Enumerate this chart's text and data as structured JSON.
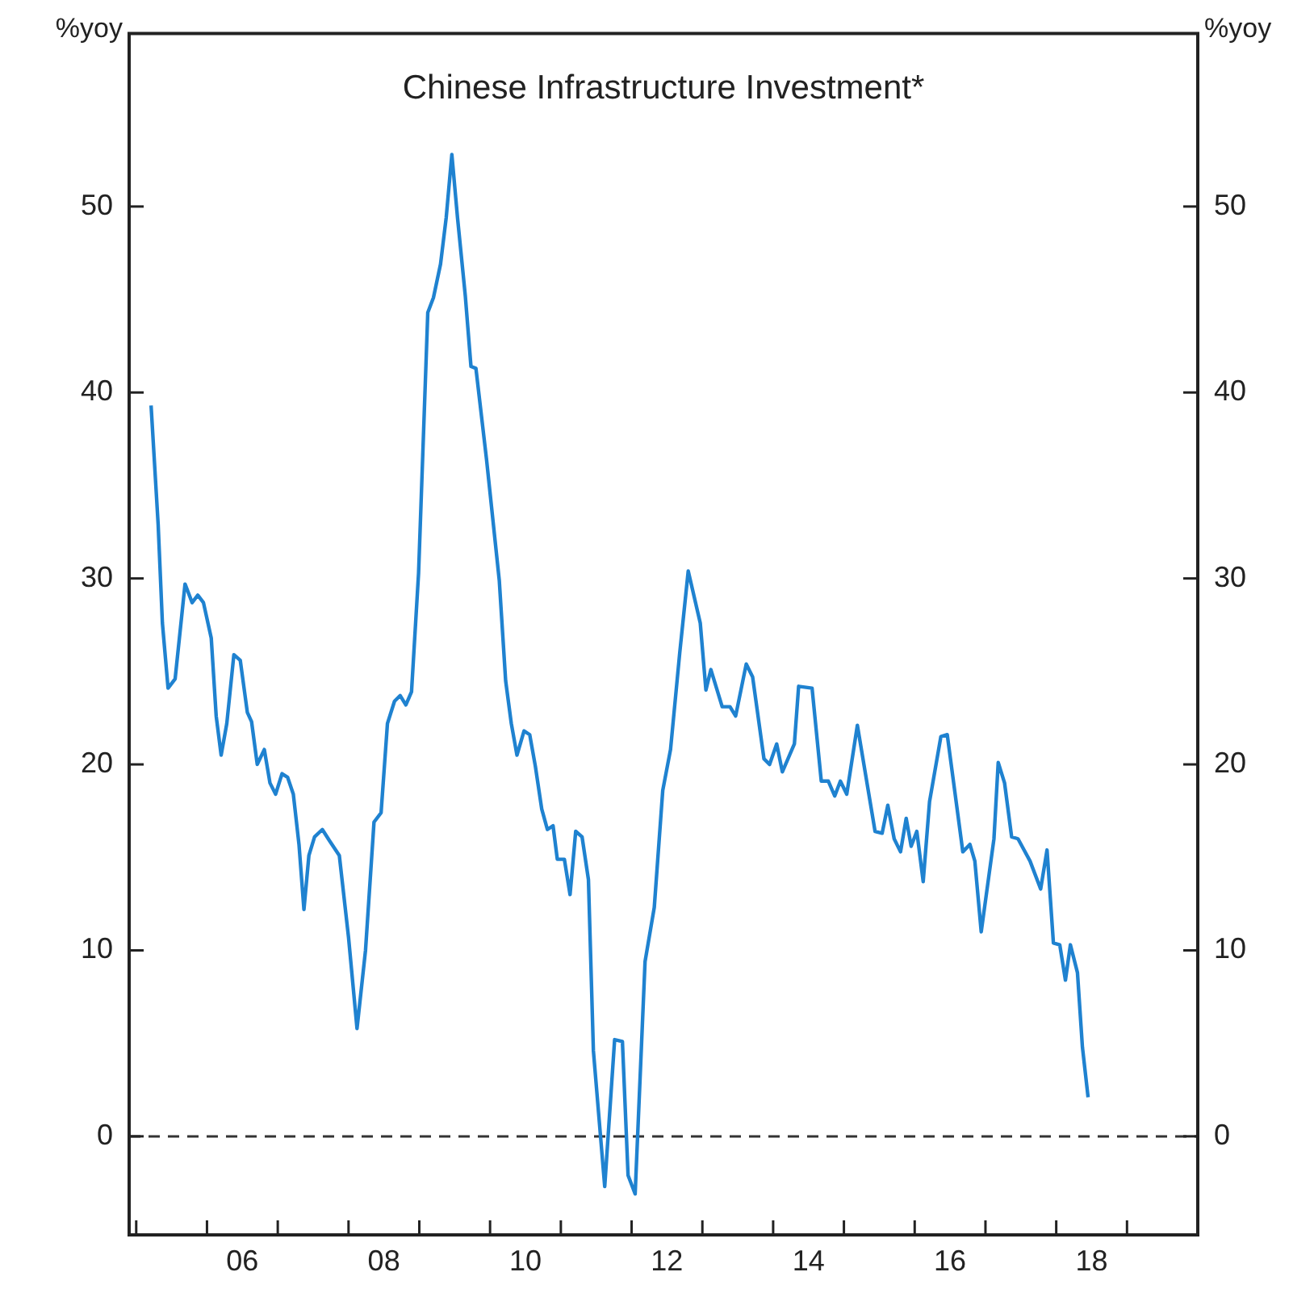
{
  "chart_data": {
    "type": "line",
    "title": "Chinese Infrastructure Investment*",
    "ylabel": "%yoy",
    "y2label": "%yoy",
    "x": [
      2004.71,
      2004.81,
      2004.87,
      2004.95,
      2005.05,
      2005.19,
      2005.29,
      2005.37,
      2005.45,
      2005.56,
      2005.63,
      2005.7,
      2005.78,
      2005.88,
      2005.97,
      2006.07,
      2006.13,
      2006.21,
      2006.31,
      2006.39,
      2006.47,
      2006.56,
      2006.64,
      2006.72,
      2006.8,
      2006.87,
      2006.94,
      2007.02,
      2007.13,
      2007.23,
      2007.37,
      2007.5,
      2007.62,
      2007.74,
      2007.86,
      2007.96,
      2008.05,
      2008.15,
      2008.23,
      2008.31,
      2008.39,
      2008.49,
      2008.62,
      2008.7,
      2008.8,
      2008.88,
      2008.96,
      2009.04,
      2009.15,
      2009.23,
      2009.3,
      2009.45,
      2009.63,
      2009.72,
      2009.8,
      2009.88,
      2009.98,
      2010.06,
      2010.14,
      2010.23,
      2010.31,
      2010.39,
      2010.45,
      2010.55,
      2010.63,
      2010.71,
      2010.8,
      2010.89,
      2010.96,
      2011.12,
      2011.26,
      2011.37,
      2011.45,
      2011.55,
      2011.69,
      2011.82,
      2011.94,
      2012.05,
      2012.18,
      2012.3,
      2012.47,
      2012.55,
      2012.62,
      2012.78,
      2012.89,
      2012.97,
      2013.12,
      2013.21,
      2013.37,
      2013.45,
      2013.55,
      2013.63,
      2013.8,
      2013.86,
      2014.05,
      2014.18,
      2014.28,
      2014.37,
      2014.45,
      2014.54,
      2014.69,
      2014.94,
      2015.04,
      2015.12,
      2015.21,
      2015.3,
      2015.38,
      2015.45,
      2015.53,
      2015.62,
      2015.71,
      2015.87,
      2015.96,
      2016.18,
      2016.28,
      2016.35,
      2016.44,
      2016.62,
      2016.68,
      2016.77,
      2016.87,
      2016.96,
      2017.13,
      2017.28,
      2017.37,
      2017.46,
      2017.55,
      2017.63,
      2017.7,
      2017.8,
      2017.87,
      2017.95
    ],
    "series": [
      {
        "color": "#1f82d0",
        "values": [
          39.3,
          32.9,
          27.6,
          24.1,
          24.6,
          29.7,
          28.7,
          29.1,
          28.7,
          26.8,
          22.6,
          20.5,
          22.2,
          25.9,
          25.6,
          22.8,
          22.3,
          20.0,
          20.8,
          19.0,
          18.4,
          19.5,
          19.3,
          18.4,
          15.7,
          12.2,
          15.1,
          16.1,
          16.5,
          15.9,
          15.1,
          10.7,
          5.8,
          10.0,
          16.9,
          17.4,
          22.2,
          23.4,
          23.7,
          23.2,
          23.9,
          30.3,
          44.3,
          45.1,
          46.9,
          49.4,
          52.8,
          49.4,
          45.2,
          41.4,
          41.3,
          36.4,
          29.9,
          24.5,
          22.2,
          20.5,
          21.8,
          21.6,
          19.9,
          17.6,
          16.5,
          16.7,
          14.9,
          14.9,
          13.0,
          16.4,
          16.1,
          13.8,
          4.6,
          -2.7,
          5.2,
          5.1,
          -2.1,
          -3.1,
          9.4,
          12.3,
          18.6,
          20.8,
          26.0,
          30.4,
          27.6,
          24.0,
          25.1,
          23.1,
          23.1,
          22.6,
          25.4,
          24.7,
          20.3,
          20.0,
          21.1,
          19.6,
          21.1,
          24.2,
          24.1,
          19.1,
          19.1,
          18.3,
          19.1,
          18.4,
          22.1,
          16.4,
          16.3,
          17.8,
          16.0,
          15.3,
          17.1,
          15.6,
          16.4,
          13.7,
          18.0,
          21.5,
          21.6,
          15.3,
          15.7,
          14.8,
          11.0,
          16.0,
          20.1,
          19.0,
          16.1,
          16.0,
          14.8,
          13.3,
          15.4,
          10.4,
          10.3,
          8.4,
          10.3,
          8.8,
          4.8,
          2.1
        ]
      }
    ],
    "xlim": [
      2004.4,
      2019.5
    ],
    "xticks": [
      {
        "value": 2004.5,
        "label": null
      },
      {
        "value": 2005.5,
        "label": null
      },
      {
        "value": 2006,
        "label": "06"
      },
      {
        "value": 2006.5,
        "label": null
      },
      {
        "value": 2007.5,
        "label": null
      },
      {
        "value": 2008,
        "label": "08"
      },
      {
        "value": 2008.5,
        "label": null
      },
      {
        "value": 2009.5,
        "label": null
      },
      {
        "value": 2010,
        "label": "10"
      },
      {
        "value": 2010.5,
        "label": null
      },
      {
        "value": 2011.5,
        "label": null
      },
      {
        "value": 2012,
        "label": "12"
      },
      {
        "value": 2012.5,
        "label": null
      },
      {
        "value": 2013.5,
        "label": null
      },
      {
        "value": 2014,
        "label": "14"
      },
      {
        "value": 2014.5,
        "label": null
      },
      {
        "value": 2015.5,
        "label": null
      },
      {
        "value": 2016,
        "label": "16"
      },
      {
        "value": 2016.5,
        "label": null
      },
      {
        "value": 2017.5,
        "label": null
      },
      {
        "value": 2018,
        "label": "18"
      },
      {
        "value": 2018.5,
        "label": null
      }
    ],
    "ylim": [
      -5.3,
      59.3
    ],
    "yticks": [
      0,
      10,
      20,
      30,
      40,
      50
    ],
    "y2lim": [
      -5.3,
      59.3
    ],
    "y2ticks": [
      0,
      10,
      20,
      30,
      40,
      50
    ],
    "ref_lines": [
      {
        "axis": "y",
        "value": 0,
        "line_style": "dashed",
        "color": "#333333"
      }
    ],
    "grid": false,
    "legend": false,
    "marker": "none",
    "line_style": "solid"
  }
}
